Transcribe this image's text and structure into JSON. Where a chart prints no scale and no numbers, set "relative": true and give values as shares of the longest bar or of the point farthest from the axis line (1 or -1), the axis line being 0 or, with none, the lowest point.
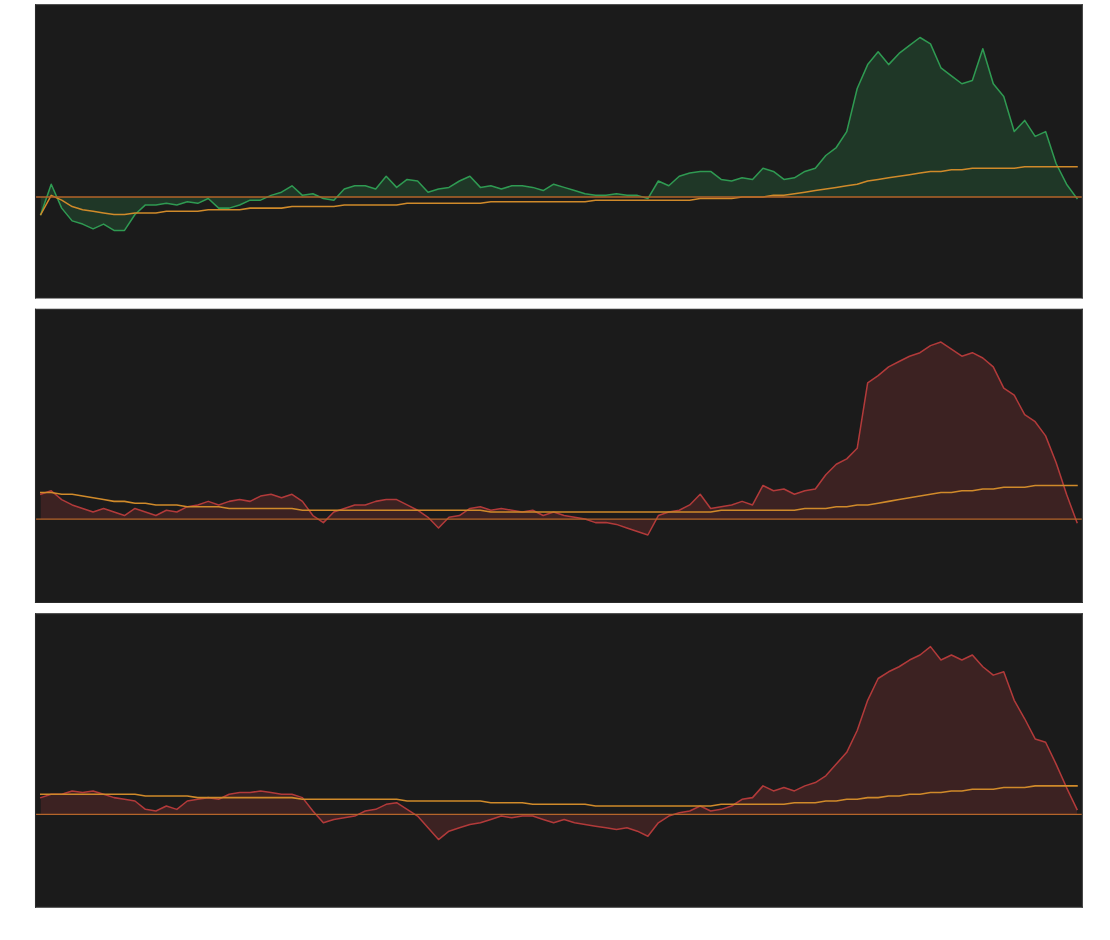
{
  "chart_data": [
    {
      "type": "area",
      "relative": true,
      "categories": [
        null,
        null,
        null,
        null,
        null,
        null,
        null,
        null,
        null,
        null,
        null,
        null,
        null,
        null,
        null,
        null,
        null,
        null,
        null,
        null,
        null,
        null,
        null,
        null,
        null,
        null,
        null,
        null,
        null,
        null,
        null,
        null,
        null,
        null,
        null,
        null,
        null,
        null,
        null,
        null,
        null,
        null,
        null,
        null,
        null,
        null,
        null,
        null,
        null,
        null,
        null,
        null,
        null,
        null,
        null,
        null,
        null,
        null,
        null,
        null,
        null,
        null,
        null,
        null,
        null,
        null,
        null,
        null,
        null,
        null,
        null,
        null,
        null,
        null,
        null,
        null,
        null,
        null,
        null,
        null,
        null,
        null,
        null,
        null,
        null,
        null,
        null,
        null,
        null,
        null,
        null,
        null,
        null,
        null,
        null,
        null,
        null,
        null,
        null,
        null
      ],
      "ref_lines": [
        {
          "axis": "y",
          "value": 0,
          "label": null,
          "color": "#b5652a"
        }
      ],
      "series": [
        {
          "color": "#2f9a52",
          "values": [
            -0.11,
            0.08,
            -0.07,
            -0.15,
            -0.17,
            -0.2,
            -0.17,
            -0.21,
            -0.21,
            -0.11,
            -0.05,
            -0.05,
            -0.04,
            -0.05,
            -0.03,
            -0.04,
            -0.01,
            -0.07,
            -0.07,
            -0.05,
            -0.02,
            -0.02,
            0.01,
            0.03,
            0.07,
            0.01,
            0.02,
            -0.01,
            -0.02,
            0.05,
            0.07,
            0.07,
            0.05,
            0.13,
            0.06,
            0.11,
            0.1,
            0.03,
            0.05,
            0.06,
            0.1,
            0.13,
            0.06,
            0.07,
            0.05,
            0.07,
            0.07,
            0.06,
            0.04,
            0.08,
            0.06,
            0.04,
            0.02,
            0.01,
            0.01,
            0.02,
            0.01,
            0.01,
            -0.01,
            0.1,
            0.07,
            0.13,
            0.15,
            0.16,
            0.16,
            0.11,
            0.1,
            0.12,
            0.11,
            0.18,
            0.16,
            0.11,
            0.12,
            0.16,
            0.18,
            0.26,
            0.31,
            0.41,
            0.68,
            0.83,
            0.91,
            0.83,
            0.9,
            0.95,
            1.0,
            0.96,
            0.81,
            0.76,
            0.71,
            0.73,
            0.93,
            0.71,
            0.63,
            0.41,
            0.48,
            0.38,
            0.41,
            0.21,
            0.08,
            -0.01
          ]
        },
        {
          "type": "line",
          "color": "#d08a2a",
          "values": [
            -0.11,
            0.01,
            -0.02,
            -0.06,
            -0.08,
            -0.09,
            -0.1,
            -0.11,
            -0.11,
            -0.1,
            -0.1,
            -0.1,
            -0.09,
            -0.09,
            -0.09,
            -0.09,
            -0.08,
            -0.08,
            -0.08,
            -0.08,
            -0.07,
            -0.07,
            -0.07,
            -0.07,
            -0.06,
            -0.06,
            -0.06,
            -0.06,
            -0.06,
            -0.05,
            -0.05,
            -0.05,
            -0.05,
            -0.05,
            -0.05,
            -0.04,
            -0.04,
            -0.04,
            -0.04,
            -0.04,
            -0.04,
            -0.04,
            -0.04,
            -0.03,
            -0.03,
            -0.03,
            -0.03,
            -0.03,
            -0.03,
            -0.03,
            -0.03,
            -0.03,
            -0.03,
            -0.02,
            -0.02,
            -0.02,
            -0.02,
            -0.02,
            -0.02,
            -0.02,
            -0.02,
            -0.02,
            -0.02,
            -0.01,
            -0.01,
            -0.01,
            -0.01,
            0.0,
            0.0,
            0.0,
            0.01,
            0.01,
            0.02,
            0.03,
            0.04,
            0.05,
            0.06,
            0.07,
            0.08,
            0.1,
            0.11,
            0.12,
            0.13,
            0.14,
            0.15,
            0.16,
            0.16,
            0.17,
            0.17,
            0.18,
            0.18,
            0.18,
            0.18,
            0.18,
            0.19,
            0.19,
            0.19,
            0.19,
            0.19,
            0.19
          ]
        }
      ]
    },
    {
      "type": "area",
      "relative": true,
      "categories": [
        null,
        null,
        null,
        null,
        null,
        null,
        null,
        null,
        null,
        null,
        null,
        null,
        null,
        null,
        null,
        null,
        null,
        null,
        null,
        null,
        null,
        null,
        null,
        null,
        null,
        null,
        null,
        null,
        null,
        null,
        null,
        null,
        null,
        null,
        null,
        null,
        null,
        null,
        null,
        null,
        null,
        null,
        null,
        null,
        null,
        null,
        null,
        null,
        null,
        null,
        null,
        null,
        null,
        null,
        null,
        null,
        null,
        null,
        null,
        null,
        null,
        null,
        null,
        null,
        null,
        null,
        null,
        null,
        null,
        null,
        null,
        null,
        null,
        null,
        null,
        null,
        null,
        null,
        null,
        null,
        null,
        null,
        null,
        null,
        null,
        null,
        null,
        null,
        null,
        null,
        null,
        null,
        null,
        null,
        null,
        null,
        null,
        null,
        null,
        null
      ],
      "ref_lines": [
        {
          "axis": "y",
          "value": 0,
          "label": null,
          "color": "#b5652a"
        }
      ],
      "series": [
        {
          "color": "#b23a3a",
          "values": [
            0.14,
            0.16,
            0.11,
            0.08,
            0.06,
            0.04,
            0.06,
            0.04,
            0.02,
            0.06,
            0.04,
            0.02,
            0.05,
            0.04,
            0.07,
            0.08,
            0.1,
            0.08,
            0.1,
            0.11,
            0.1,
            0.13,
            0.14,
            0.12,
            0.14,
            0.1,
            0.02,
            -0.02,
            0.04,
            0.06,
            0.08,
            0.08,
            0.1,
            0.11,
            0.11,
            0.08,
            0.05,
            0.01,
            -0.05,
            0.01,
            0.02,
            0.06,
            0.07,
            0.05,
            0.06,
            0.05,
            0.04,
            0.05,
            0.02,
            0.04,
            0.02,
            0.01,
            0.0,
            -0.02,
            -0.02,
            -0.03,
            -0.05,
            -0.07,
            -0.09,
            0.02,
            0.04,
            0.05,
            0.08,
            0.14,
            0.06,
            0.07,
            0.08,
            0.1,
            0.08,
            0.19,
            0.16,
            0.17,
            0.14,
            0.16,
            0.17,
            0.25,
            0.31,
            0.34,
            0.4,
            0.77,
            0.81,
            0.86,
            0.89,
            0.92,
            0.94,
            0.98,
            1.0,
            0.96,
            0.92,
            0.94,
            0.91,
            0.86,
            0.74,
            0.7,
            0.59,
            0.55,
            0.47,
            0.32,
            0.14,
            -0.02
          ]
        },
        {
          "type": "line",
          "color": "#d08a2a",
          "values": [
            0.15,
            0.15,
            0.14,
            0.14,
            0.13,
            0.12,
            0.11,
            0.1,
            0.1,
            0.09,
            0.09,
            0.08,
            0.08,
            0.08,
            0.07,
            0.07,
            0.07,
            0.07,
            0.06,
            0.06,
            0.06,
            0.06,
            0.06,
            0.06,
            0.06,
            0.05,
            0.05,
            0.05,
            0.05,
            0.05,
            0.05,
            0.05,
            0.05,
            0.05,
            0.05,
            0.05,
            0.05,
            0.05,
            0.05,
            0.05,
            0.05,
            0.05,
            0.05,
            0.04,
            0.04,
            0.04,
            0.04,
            0.04,
            0.04,
            0.04,
            0.04,
            0.04,
            0.04,
            0.04,
            0.04,
            0.04,
            0.04,
            0.04,
            0.04,
            0.04,
            0.04,
            0.04,
            0.04,
            0.04,
            0.04,
            0.05,
            0.05,
            0.05,
            0.05,
            0.05,
            0.05,
            0.05,
            0.05,
            0.06,
            0.06,
            0.06,
            0.07,
            0.07,
            0.08,
            0.08,
            0.09,
            0.1,
            0.11,
            0.12,
            0.13,
            0.14,
            0.15,
            0.15,
            0.16,
            0.16,
            0.17,
            0.17,
            0.18,
            0.18,
            0.18,
            0.19,
            0.19,
            0.19,
            0.19,
            0.19
          ]
        }
      ]
    },
    {
      "type": "area",
      "relative": true,
      "categories": [
        null,
        null,
        null,
        null,
        null,
        null,
        null,
        null,
        null,
        null,
        null,
        null,
        null,
        null,
        null,
        null,
        null,
        null,
        null,
        null,
        null,
        null,
        null,
        null,
        null,
        null,
        null,
        null,
        null,
        null,
        null,
        null,
        null,
        null,
        null,
        null,
        null,
        null,
        null,
        null,
        null,
        null,
        null,
        null,
        null,
        null,
        null,
        null,
        null,
        null,
        null,
        null,
        null,
        null,
        null,
        null,
        null,
        null,
        null,
        null,
        null,
        null,
        null,
        null,
        null,
        null,
        null,
        null,
        null,
        null,
        null,
        null,
        null,
        null,
        null,
        null,
        null,
        null,
        null,
        null,
        null,
        null,
        null,
        null,
        null,
        null,
        null,
        null,
        null,
        null,
        null,
        null,
        null,
        null,
        null,
        null,
        null,
        null,
        null,
        null
      ],
      "ref_lines": [
        {
          "axis": "y",
          "value": 0,
          "label": null,
          "color": "#b5652a"
        }
      ],
      "series": [
        {
          "color": "#b23a3a",
          "values": [
            0.1,
            0.12,
            0.12,
            0.14,
            0.13,
            0.14,
            0.12,
            0.1,
            0.09,
            0.08,
            0.03,
            0.02,
            0.05,
            0.03,
            0.08,
            0.09,
            0.1,
            0.09,
            0.12,
            0.13,
            0.13,
            0.14,
            0.13,
            0.12,
            0.12,
            0.1,
            0.02,
            -0.05,
            -0.03,
            -0.02,
            -0.01,
            0.02,
            0.03,
            0.06,
            0.07,
            0.03,
            -0.01,
            -0.08,
            -0.15,
            -0.1,
            -0.08,
            -0.06,
            -0.05,
            -0.03,
            -0.01,
            -0.02,
            -0.01,
            -0.01,
            -0.03,
            -0.05,
            -0.03,
            -0.05,
            -0.06,
            -0.07,
            -0.08,
            -0.09,
            -0.08,
            -0.1,
            -0.13,
            -0.05,
            -0.01,
            0.01,
            0.02,
            0.05,
            0.02,
            0.03,
            0.05,
            0.09,
            0.1,
            0.17,
            0.14,
            0.16,
            0.14,
            0.17,
            0.19,
            0.23,
            0.3,
            0.37,
            0.5,
            0.68,
            0.81,
            0.85,
            0.88,
            0.92,
            0.95,
            1.0,
            0.92,
            0.95,
            0.92,
            0.95,
            0.88,
            0.83,
            0.85,
            0.68,
            0.57,
            0.45,
            0.43,
            0.3,
            0.16,
            0.03
          ]
        },
        {
          "type": "line",
          "color": "#d08a2a",
          "values": [
            0.12,
            0.12,
            0.12,
            0.12,
            0.12,
            0.12,
            0.12,
            0.12,
            0.12,
            0.12,
            0.11,
            0.11,
            0.11,
            0.11,
            0.11,
            0.1,
            0.1,
            0.1,
            0.1,
            0.1,
            0.1,
            0.1,
            0.1,
            0.1,
            0.1,
            0.09,
            0.09,
            0.09,
            0.09,
            0.09,
            0.09,
            0.09,
            0.09,
            0.09,
            0.09,
            0.08,
            0.08,
            0.08,
            0.08,
            0.08,
            0.08,
            0.08,
            0.08,
            0.07,
            0.07,
            0.07,
            0.07,
            0.06,
            0.06,
            0.06,
            0.06,
            0.06,
            0.06,
            0.05,
            0.05,
            0.05,
            0.05,
            0.05,
            0.05,
            0.05,
            0.05,
            0.05,
            0.05,
            0.05,
            0.05,
            0.06,
            0.06,
            0.06,
            0.06,
            0.06,
            0.06,
            0.06,
            0.07,
            0.07,
            0.07,
            0.08,
            0.08,
            0.09,
            0.09,
            0.1,
            0.1,
            0.11,
            0.11,
            0.12,
            0.12,
            0.13,
            0.13,
            0.14,
            0.14,
            0.15,
            0.15,
            0.15,
            0.16,
            0.16,
            0.16,
            0.17,
            0.17,
            0.17,
            0.17,
            0.17
          ]
        }
      ]
    }
  ]
}
